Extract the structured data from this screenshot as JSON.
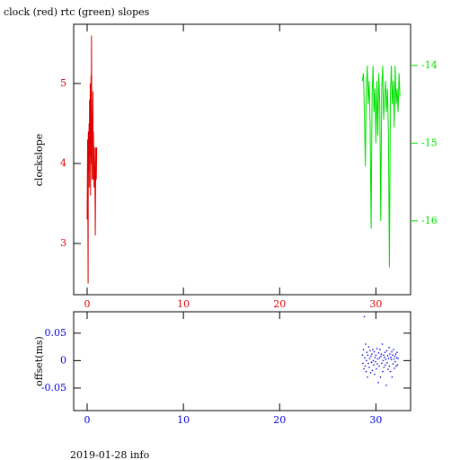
{
  "chart_data": [
    {
      "type": "line",
      "title": "clock (red) rtc (green) slopes",
      "ylabel": "clockslope",
      "xlim": [
        -1.4,
        33.6
      ],
      "xticks": [
        0,
        10,
        20,
        30
      ],
      "ylim": [
        2.36,
        5.74
      ],
      "yticks": [
        3,
        4,
        5
      ],
      "y2lim": [
        -16.95,
        -13.47
      ],
      "y2ticks": [
        -16,
        -15,
        -14
      ],
      "series": [
        {
          "color": "#e00000",
          "x": [
            0.0,
            0.05,
            0.1,
            0.12,
            0.15,
            0.2,
            0.22,
            0.25,
            0.3,
            0.32,
            0.35,
            0.4,
            0.42,
            0.45,
            0.5,
            0.52,
            0.55,
            0.6,
            0.62,
            0.65,
            0.7,
            0.72,
            0.75,
            0.8,
            0.85,
            0.9,
            0.95,
            1.0
          ],
          "values": [
            3.3,
            4.3,
            2.5,
            4.4,
            3.9,
            4.5,
            3.7,
            4.8,
            4.1,
            5.0,
            3.6,
            5.1,
            4.0,
            5.6,
            3.8,
            4.6,
            4.2,
            4.9,
            3.8,
            4.4,
            4.0,
            3.7,
            4.2,
            3.9,
            3.1,
            4.2,
            3.8,
            4.2
          ]
        },
        {
          "color": "#00e000",
          "axis": "y2",
          "x": [
            28.6,
            28.7,
            28.8,
            28.9,
            29.0,
            29.1,
            29.2,
            29.3,
            29.4,
            29.5,
            29.6,
            29.7,
            29.8,
            29.9,
            30.0,
            30.1,
            30.2,
            30.3,
            30.4,
            30.5,
            30.6,
            30.7,
            30.8,
            30.9,
            31.0,
            31.1,
            31.2,
            31.3,
            31.4,
            31.5,
            31.6,
            31.7,
            31.8,
            31.9,
            32.0,
            32.1,
            32.2,
            32.3,
            32.4,
            32.5
          ],
          "values": [
            -14.2,
            -14.1,
            -14.6,
            -15.3,
            -14.3,
            -14.0,
            -14.5,
            -14.2,
            -14.8,
            -16.1,
            -14.4,
            -14.0,
            -14.6,
            -14.3,
            -15.0,
            -14.2,
            -14.9,
            -14.1,
            -14.5,
            -16.0,
            -14.3,
            -14.0,
            -14.7,
            -14.4,
            -14.2,
            -14.6,
            -14.3,
            -14.9,
            -16.6,
            -14.4,
            -14.0,
            -14.5,
            -14.2,
            -14.8,
            -14.0,
            -14.5,
            -14.3,
            -14.6,
            -14.1,
            -14.4
          ]
        }
      ]
    },
    {
      "type": "scatter",
      "ylabel": "offset(ms)",
      "xlim": [
        -1.4,
        33.6
      ],
      "xticks": [
        0,
        10,
        20,
        30
      ],
      "ylim": [
        -0.091,
        0.089
      ],
      "yticks": [
        -0.05,
        0,
        0.05
      ],
      "series": [
        {
          "color": "#0000e0",
          "x": [
            28.6,
            28.65,
            28.7,
            28.74,
            28.79,
            28.84,
            28.88,
            28.93,
            28.98,
            29.02,
            29.07,
            29.12,
            29.16,
            29.21,
            29.26,
            29.3,
            29.35,
            29.4,
            29.44,
            29.49,
            29.54,
            29.58,
            29.63,
            29.68,
            29.72,
            29.77,
            29.82,
            29.86,
            29.91,
            29.96,
            30.0,
            30.05,
            30.1,
            30.14,
            30.19,
            30.24,
            30.28,
            30.33,
            30.38,
            30.42,
            30.47,
            30.52,
            30.56,
            30.61,
            30.66,
            30.7,
            30.75,
            30.8,
            30.84,
            30.89,
            30.94,
            30.98,
            31.03,
            31.08,
            31.12,
            31.17,
            31.22,
            31.26,
            31.31,
            31.36,
            31.4,
            31.45,
            31.5,
            31.54,
            31.59,
            31.64,
            31.68,
            31.73,
            31.78,
            31.82,
            31.87,
            31.92,
            31.96,
            32.01,
            32.06,
            32.1,
            32.15,
            32.2,
            32.24,
            32.29
          ],
          "values": [
            0.01,
            -0.005,
            0.02,
            -0.015,
            0.08,
            0.005,
            -0.01,
            0.03,
            -0.02,
            0.0,
            0.015,
            -0.03,
            0.01,
            -0.005,
            0.025,
            -0.012,
            0.004,
            0.018,
            -0.022,
            0.008,
            -0.003,
            0.012,
            -0.018,
            0.02,
            0.0,
            -0.008,
            0.016,
            -0.025,
            0.006,
            -0.002,
            0.01,
            -0.015,
            0.022,
            -0.006,
            0.003,
            -0.04,
            0.014,
            -0.01,
            0.005,
            0.02,
            -0.03,
            0.008,
            0.012,
            -0.005,
            0.03,
            -0.02,
            0.0,
            0.01,
            -0.012,
            0.006,
            0.015,
            -0.008,
            0.002,
            -0.045,
            0.018,
            -0.004,
            0.009,
            -0.016,
            0.004,
            0.024,
            -0.01,
            0.012,
            -0.02,
            0.006,
            0.002,
            0.016,
            -0.03,
            0.01,
            -0.006,
            0.02,
            0.003,
            -0.014,
            0.008,
            -0.002,
            0.012,
            -0.01,
            0.005,
            0.015,
            -0.008,
            0.004
          ]
        }
      ]
    }
  ],
  "footer": "2019-01-28 info"
}
